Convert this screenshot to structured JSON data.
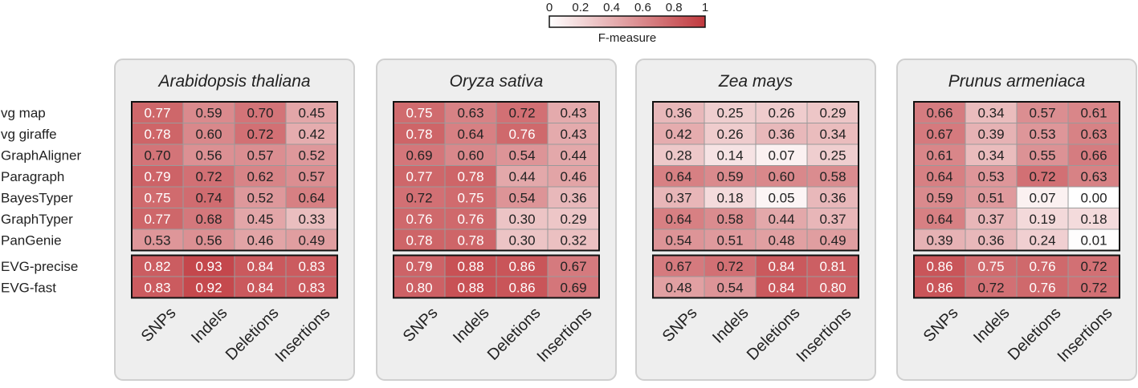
{
  "chart_data": {
    "type": "heatmap",
    "colorbar": {
      "ticks": [
        "0",
        "0.2",
        "0.4",
        "0.6",
        "0.8",
        "1"
      ],
      "label": "F-measure",
      "range": [
        0,
        1
      ],
      "low_color": "#ffffff",
      "high_color": "#c0393e"
    },
    "row_labels": [
      "vg map",
      "vg giraffe",
      "GraphAligner",
      "Paragraph",
      "BayesTyper",
      "GraphTyper",
      "PanGenie",
      "EVG-precise",
      "EVG-fast"
    ],
    "column_labels": [
      "SNPs",
      "Indels",
      "Deletions",
      "Insertions"
    ],
    "panels": [
      {
        "title": "Arabidopsis thaliana",
        "values": [
          [
            0.77,
            0.59,
            0.7,
            0.45
          ],
          [
            0.78,
            0.6,
            0.72,
            0.42
          ],
          [
            0.7,
            0.56,
            0.57,
            0.52
          ],
          [
            0.79,
            0.72,
            0.62,
            0.57
          ],
          [
            0.75,
            0.74,
            0.52,
            0.64
          ],
          [
            0.77,
            0.68,
            0.45,
            0.33
          ],
          [
            0.53,
            0.56,
            0.46,
            0.49
          ],
          [
            0.82,
            0.93,
            0.84,
            0.83
          ],
          [
            0.83,
            0.92,
            0.84,
            0.83
          ]
        ]
      },
      {
        "title": "Oryza sativa",
        "values": [
          [
            0.75,
            0.63,
            0.72,
            0.43
          ],
          [
            0.78,
            0.64,
            0.76,
            0.43
          ],
          [
            0.69,
            0.6,
            0.54,
            0.44
          ],
          [
            0.77,
            0.78,
            0.44,
            0.46
          ],
          [
            0.72,
            0.75,
            0.54,
            0.36
          ],
          [
            0.76,
            0.76,
            0.3,
            0.29
          ],
          [
            0.78,
            0.78,
            0.3,
            0.32
          ],
          [
            0.79,
            0.88,
            0.86,
            0.67
          ],
          [
            0.8,
            0.88,
            0.86,
            0.69
          ]
        ]
      },
      {
        "title": "Zea mays",
        "values": [
          [
            0.36,
            0.25,
            0.26,
            0.29
          ],
          [
            0.42,
            0.26,
            0.36,
            0.34
          ],
          [
            0.28,
            0.14,
            0.07,
            0.25
          ],
          [
            0.64,
            0.59,
            0.6,
            0.58
          ],
          [
            0.37,
            0.18,
            0.05,
            0.36
          ],
          [
            0.64,
            0.58,
            0.44,
            0.37
          ],
          [
            0.54,
            0.51,
            0.48,
            0.49
          ],
          [
            0.67,
            0.72,
            0.84,
            0.81
          ],
          [
            0.48,
            0.54,
            0.84,
            0.8
          ]
        ]
      },
      {
        "title": "Prunus armeniaca",
        "values": [
          [
            0.66,
            0.34,
            0.57,
            0.61
          ],
          [
            0.67,
            0.39,
            0.53,
            0.63
          ],
          [
            0.61,
            0.34,
            0.55,
            0.66
          ],
          [
            0.64,
            0.53,
            0.72,
            0.63
          ],
          [
            0.59,
            0.51,
            0.07,
            0.0
          ],
          [
            0.64,
            0.37,
            0.19,
            0.18
          ],
          [
            0.39,
            0.36,
            0.24,
            0.01
          ],
          [
            0.86,
            0.75,
            0.76,
            0.72
          ],
          [
            0.86,
            0.72,
            0.76,
            0.72
          ]
        ]
      }
    ]
  }
}
